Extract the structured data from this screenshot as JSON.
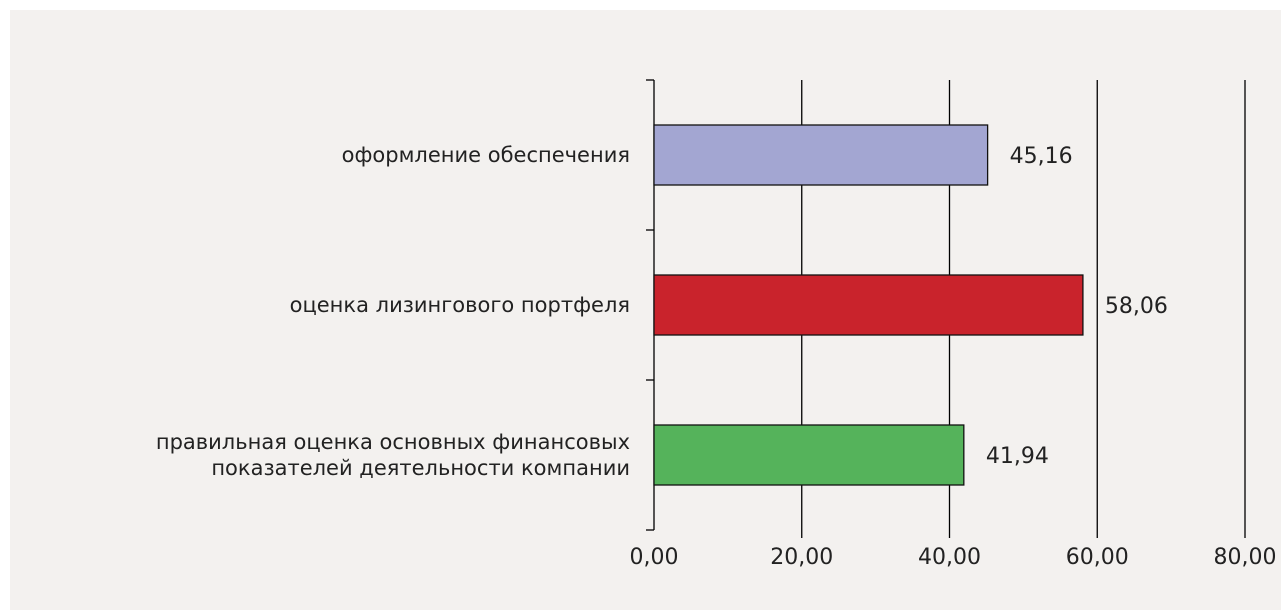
{
  "chart_data": {
    "type": "bar",
    "orientation": "horizontal",
    "categories": [
      [
        "оформление обеспечения"
      ],
      [
        "оценка лизингового портфеля"
      ],
      [
        "правильная оценка основных финансовых",
        "показателей деятельности компании"
      ]
    ],
    "values": [
      45.16,
      58.06,
      41.94
    ],
    "data_labels": [
      "45,16",
      "58,06",
      "41,94"
    ],
    "bar_colors": [
      "#a3a6d2",
      "#c9232c",
      "#55b35b"
    ],
    "xlim": [
      0,
      80
    ],
    "x_ticks": [
      0,
      20,
      40,
      60,
      80
    ],
    "x_tick_labels": [
      "0,00",
      "20,00",
      "40,00",
      "60,00",
      "80,00"
    ],
    "grid": "vertical",
    "legend": "none"
  }
}
